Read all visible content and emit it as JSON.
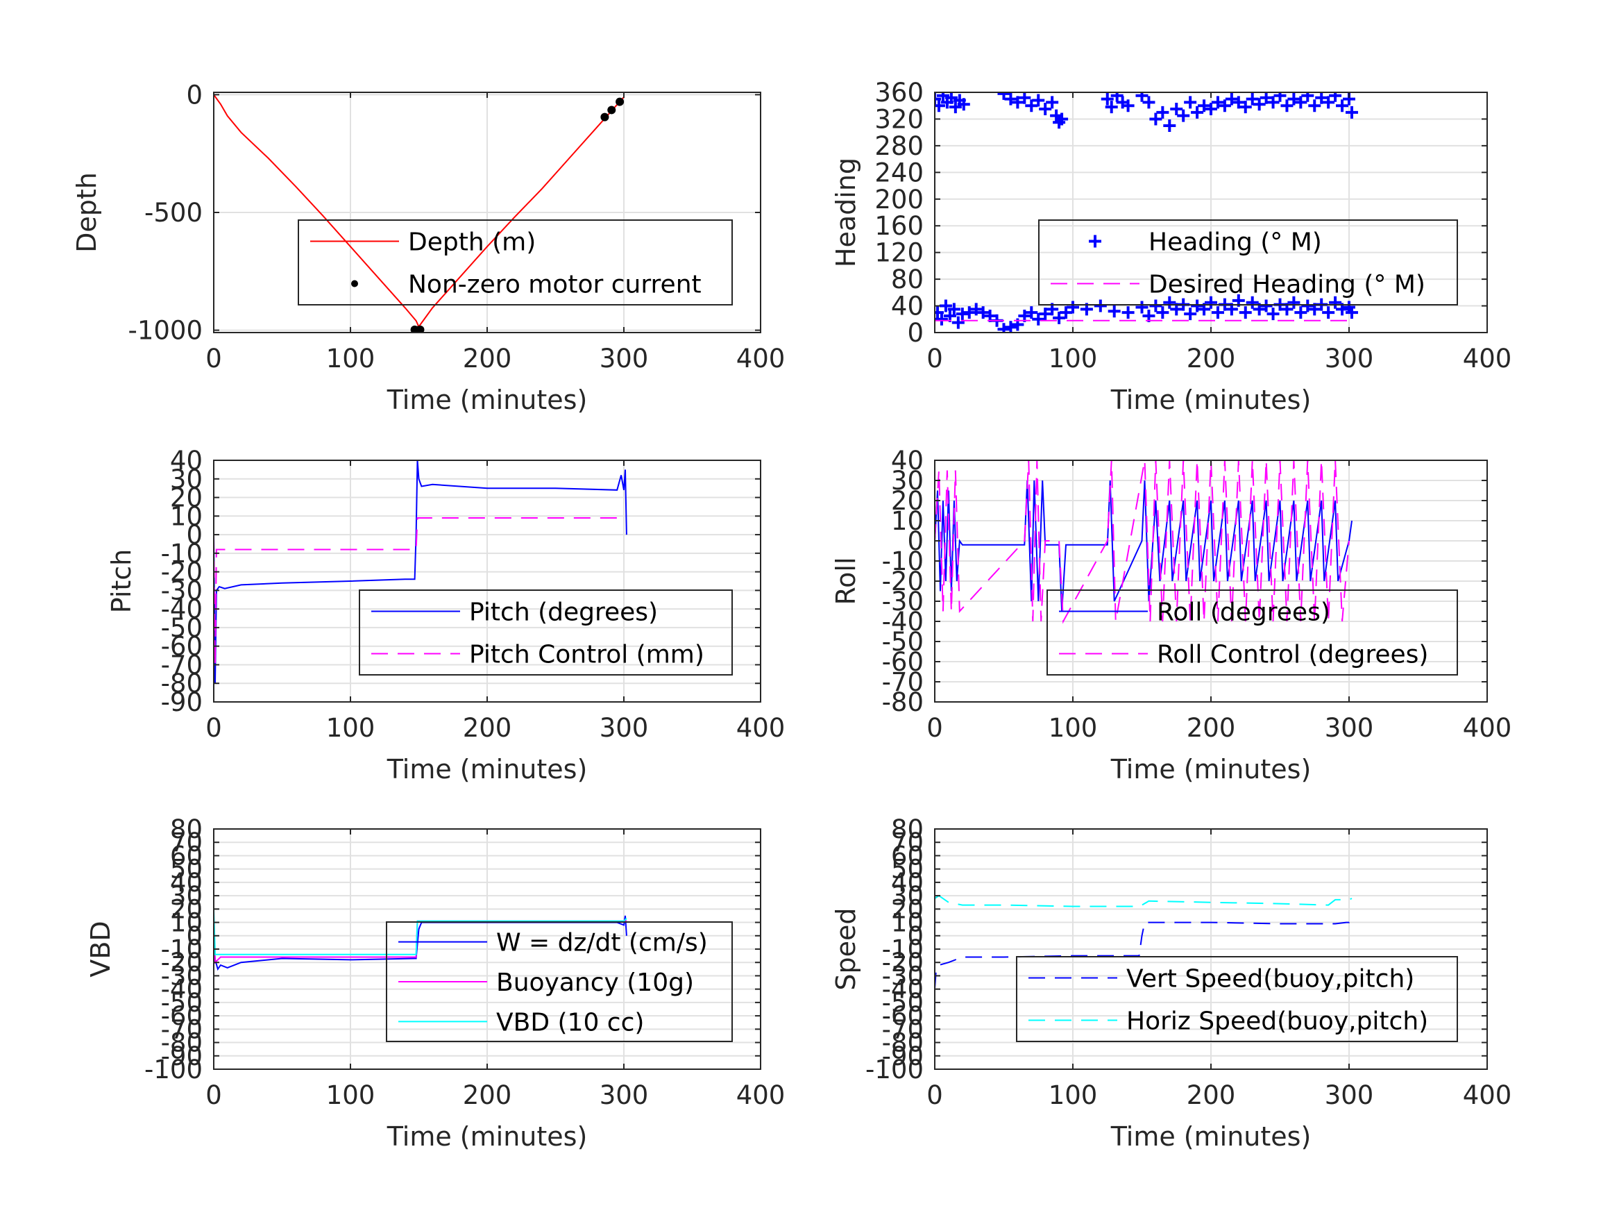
{
  "figure": {
    "background": "#ffffff"
  },
  "chart_data": [
    {
      "id": "depth",
      "type": "line",
      "title": "",
      "xlabel": "Time (minutes)",
      "ylabel": "Depth",
      "xlim": [
        0,
        400
      ],
      "ylim": [
        -1010,
        10
      ],
      "xticks": [
        0,
        100,
        200,
        300,
        400
      ],
      "yticks": [
        0,
        -500,
        -1000
      ],
      "grid": true,
      "legend_location": "center-right",
      "series": [
        {
          "name": "Depth (m)",
          "style": "line",
          "color": "#ff0000",
          "dash": "",
          "x": [
            0,
            5,
            10,
            20,
            40,
            60,
            80,
            100,
            120,
            140,
            148,
            150,
            160,
            180,
            200,
            220,
            240,
            260,
            280,
            300
          ],
          "y": [
            0,
            -40,
            -90,
            -160,
            -270,
            -390,
            -515,
            -645,
            -775,
            -905,
            -960,
            -985,
            -905,
            -775,
            -645,
            -520,
            -400,
            -270,
            -140,
            -10
          ]
        },
        {
          "name": "Non-zero motor current",
          "style": "dots",
          "color": "#000000",
          "x": [
            147,
            149,
            151,
            286,
            291,
            297
          ],
          "y": [
            -998,
            -1000,
            -998,
            -95,
            -65,
            -30
          ]
        }
      ]
    },
    {
      "id": "heading",
      "type": "scatter",
      "title": "",
      "xlabel": "Time (minutes)",
      "ylabel": "Heading",
      "xlim": [
        0,
        400
      ],
      "ylim": [
        0,
        360
      ],
      "xticks": [
        0,
        100,
        200,
        300,
        400
      ],
      "yticks": [
        0,
        40,
        80,
        120,
        160,
        200,
        240,
        280,
        320,
        360
      ],
      "grid": true,
      "legend_location": "center-right",
      "series": [
        {
          "name": "Heading (° M)",
          "style": "plus",
          "color": "#0000ff",
          "x": [
            0,
            3,
            6,
            9,
            12,
            15,
            18,
            21,
            50,
            55,
            60,
            65,
            70,
            75,
            80,
            85,
            88,
            90,
            92,
            125,
            128,
            132,
            136,
            140,
            150,
            155,
            160,
            165,
            170,
            175,
            180,
            185,
            190,
            195,
            200,
            205,
            210,
            215,
            220,
            225,
            230,
            235,
            240,
            245,
            250,
            255,
            260,
            265,
            270,
            275,
            280,
            285,
            290,
            295,
            300,
            302,
            2,
            5,
            8,
            11,
            14,
            17,
            20,
            25,
            30,
            35,
            40,
            45,
            50,
            55,
            60,
            65,
            70,
            75,
            80,
            85,
            90,
            95,
            100,
            110,
            120,
            130,
            140,
            150,
            155,
            160,
            165,
            170,
            175,
            180,
            185,
            190,
            195,
            200,
            205,
            210,
            215,
            220,
            225,
            230,
            235,
            240,
            245,
            250,
            255,
            260,
            265,
            270,
            275,
            280,
            285,
            290,
            295,
            300,
            302
          ],
          "y": [
            350,
            340,
            355,
            345,
            352,
            338,
            348,
            342,
            358,
            350,
            345,
            352,
            340,
            348,
            335,
            345,
            325,
            315,
            320,
            350,
            338,
            355,
            345,
            340,
            355,
            345,
            320,
            330,
            310,
            335,
            325,
            345,
            330,
            340,
            335,
            345,
            340,
            350,
            345,
            338,
            350,
            342,
            352,
            345,
            355,
            340,
            350,
            345,
            355,
            340,
            352,
            345,
            355,
            340,
            350,
            330,
            30,
            20,
            40,
            25,
            35,
            15,
            28,
            30,
            35,
            30,
            25,
            18,
            5,
            8,
            12,
            25,
            30,
            20,
            28,
            35,
            22,
            30,
            38,
            35,
            40,
            32,
            30,
            38,
            25,
            40,
            30,
            45,
            35,
            42,
            28,
            40,
            35,
            45,
            30,
            42,
            35,
            48,
            30,
            45,
            35,
            40,
            28,
            42,
            35,
            45,
            30,
            40,
            35,
            42,
            30,
            45,
            35,
            38,
            30
          ]
        },
        {
          "name": "Desired Heading (° M)",
          "style": "line",
          "color": "#ff00ff",
          "dash": "24,14",
          "x": [
            0,
            300
          ],
          "y": [
            18,
            18
          ]
        }
      ]
    },
    {
      "id": "pitch",
      "type": "line",
      "title": "",
      "xlabel": "Time (minutes)",
      "ylabel": "Pitch",
      "xlim": [
        0,
        400
      ],
      "ylim": [
        -90,
        40
      ],
      "xticks": [
        0,
        100,
        200,
        300,
        400
      ],
      "yticks": [
        40,
        30,
        20,
        10,
        0,
        -10,
        -20,
        -30,
        -40,
        -50,
        -60,
        -70,
        -80,
        -90
      ],
      "grid": true,
      "legend_location": "lower-right",
      "series": [
        {
          "name": "Pitch (degrees)",
          "style": "line",
          "color": "#0000ff",
          "dash": "",
          "x": [
            0,
            1,
            2,
            4,
            8,
            20,
            50,
            100,
            140,
            147,
            148,
            149,
            150,
            152,
            160,
            200,
            250,
            295,
            298,
            300,
            301,
            302
          ],
          "y": [
            0,
            -80,
            -30,
            -28,
            -29,
            -27,
            -26,
            -25,
            -24,
            -24,
            0,
            40,
            30,
            26,
            27,
            25,
            25,
            24,
            32,
            24,
            35,
            0
          ]
        },
        {
          "name": "Pitch Control (mm)",
          "style": "line",
          "color": "#ff00ff",
          "dash": "24,14",
          "x": [
            0,
            1,
            2,
            148,
            149,
            300,
            301
          ],
          "y": [
            0,
            -70,
            -8,
            -8,
            9,
            9,
            9
          ]
        }
      ]
    },
    {
      "id": "roll",
      "type": "line",
      "title": "",
      "xlabel": "Time (minutes)",
      "ylabel": "Roll",
      "xlim": [
        0,
        400
      ],
      "ylim": [
        -80,
        40
      ],
      "xticks": [
        0,
        100,
        200,
        300,
        400
      ],
      "yticks": [
        40,
        30,
        20,
        10,
        0,
        -10,
        -20,
        -30,
        -40,
        -50,
        -60,
        -70,
        -80
      ],
      "grid": true,
      "legend_location": "lower-right",
      "series": [
        {
          "name": "Roll (degrees)",
          "style": "line",
          "color": "#0000ff",
          "dash": "",
          "x": [
            0,
            2,
            4,
            6,
            8,
            10,
            12,
            14,
            16,
            18,
            20,
            65,
            67,
            70,
            72,
            75,
            78,
            80,
            90,
            92,
            95,
            125,
            127,
            130,
            150,
            152,
            155,
            160,
            163,
            170,
            172,
            180,
            182,
            190,
            192,
            200,
            202,
            210,
            212,
            220,
            222,
            230,
            232,
            240,
            242,
            250,
            252,
            260,
            262,
            270,
            272,
            280,
            282,
            290,
            292,
            300,
            302
          ],
          "y": [
            0,
            25,
            -25,
            20,
            -20,
            25,
            -25,
            20,
            -20,
            0,
            -2,
            -2,
            30,
            -30,
            30,
            -30,
            30,
            -2,
            -2,
            -35,
            -2,
            -2,
            30,
            -30,
            0,
            30,
            -30,
            20,
            -20,
            20,
            -20,
            20,
            -20,
            20,
            -20,
            20,
            -20,
            20,
            -20,
            20,
            -20,
            20,
            -20,
            20,
            -20,
            20,
            -20,
            20,
            -20,
            20,
            -20,
            20,
            -20,
            20,
            -20,
            0,
            10
          ]
        },
        {
          "name": "Roll Control (degrees)",
          "style": "line",
          "color": "#ff00ff",
          "dash": "24,14",
          "x": [
            0,
            3,
            6,
            9,
            12,
            15,
            18,
            65,
            68,
            71,
            74,
            77,
            80,
            90,
            93,
            125,
            128,
            131,
            152,
            156,
            160,
            165,
            170,
            175,
            180,
            185,
            190,
            195,
            200,
            205,
            210,
            215,
            220,
            225,
            230,
            235,
            240,
            245,
            250,
            255,
            260,
            265,
            270,
            275,
            280,
            285,
            290,
            295,
            300
          ],
          "y": [
            0,
            35,
            -35,
            35,
            -35,
            35,
            -35,
            0,
            40,
            -40,
            40,
            -40,
            0,
            0,
            -40,
            0,
            40,
            -40,
            40,
            -40,
            40,
            -40,
            40,
            -40,
            40,
            -40,
            40,
            -40,
            40,
            -40,
            40,
            -40,
            40,
            -40,
            40,
            -40,
            40,
            -40,
            40,
            -40,
            40,
            -40,
            40,
            -40,
            40,
            -40,
            40,
            -40,
            0
          ]
        }
      ]
    },
    {
      "id": "vbd",
      "type": "line",
      "title": "",
      "xlabel": "Time (minutes)",
      "ylabel": "VBD",
      "xlim": [
        0,
        400
      ],
      "ylim": [
        -100,
        80
      ],
      "xticks": [
        0,
        100,
        200,
        300,
        400
      ],
      "yticks": [
        80,
        70,
        60,
        50,
        40,
        30,
        20,
        10,
        0,
        -10,
        -20,
        -30,
        -40,
        -50,
        -60,
        -70,
        -80,
        -90,
        -100
      ],
      "grid": true,
      "legend_location": "lower-right",
      "series": [
        {
          "name": "W = dz/dt (cm/s)",
          "style": "line",
          "color": "#0000ff",
          "dash": "",
          "x": [
            0,
            1,
            3,
            5,
            10,
            20,
            50,
            100,
            147,
            148,
            150,
            152,
            200,
            250,
            295,
            300,
            301,
            302
          ],
          "y": [
            0,
            -18,
            -25,
            -22,
            -24,
            -20,
            -17,
            -18,
            -17,
            -17,
            5,
            10,
            10,
            10,
            10,
            8,
            15,
            0
          ]
        },
        {
          "name": "Buoyancy (10g)",
          "style": "line",
          "color": "#ff00ff",
          "dash": "",
          "x": [
            0,
            1,
            5,
            148,
            149,
            300,
            302
          ],
          "y": [
            0,
            -20,
            -16,
            -16,
            11,
            11,
            11
          ]
        },
        {
          "name": "VBD (10 cc)",
          "style": "line",
          "color": "#00ffff",
          "dash": "",
          "x": [
            0,
            1,
            2,
            148,
            149,
            300,
            302
          ],
          "y": [
            20,
            -14,
            -14,
            -14,
            11,
            11,
            13
          ]
        }
      ]
    },
    {
      "id": "speed",
      "type": "line",
      "title": "",
      "xlabel": "Time (minutes)",
      "ylabel": "Speed",
      "xlim": [
        0,
        400
      ],
      "ylim": [
        -100,
        80
      ],
      "xticks": [
        0,
        100,
        200,
        300,
        400
      ],
      "yticks": [
        80,
        70,
        60,
        50,
        40,
        30,
        20,
        10,
        0,
        -10,
        -20,
        -30,
        -40,
        -50,
        -60,
        -70,
        -80,
        -90,
        -100
      ],
      "grid": true,
      "legend_location": "lower-right",
      "series": [
        {
          "name": "Vert Speed(buoy,pitch)",
          "style": "line",
          "color": "#0000ff",
          "dash": "24,14",
          "x": [
            0,
            1,
            3,
            10,
            20,
            50,
            100,
            145,
            148,
            150,
            152,
            200,
            250,
            290,
            298,
            300,
            302
          ],
          "y": [
            -40,
            -25,
            -22,
            -20,
            -16,
            -16,
            -15,
            -15,
            -15,
            0,
            10,
            10,
            9,
            9,
            10,
            10,
            17
          ]
        },
        {
          "name": "Horiz Speed(buoy,pitch)",
          "style": "line",
          "color": "#00ffff",
          "dash": "24,14",
          "x": [
            0,
            3,
            10,
            20,
            50,
            100,
            148,
            150,
            155,
            200,
            250,
            285,
            290,
            300,
            302
          ],
          "y": [
            28,
            30,
            25,
            23,
            23,
            22,
            22,
            23,
            26,
            25,
            24,
            23,
            27,
            27,
            28
          ]
        }
      ]
    }
  ]
}
